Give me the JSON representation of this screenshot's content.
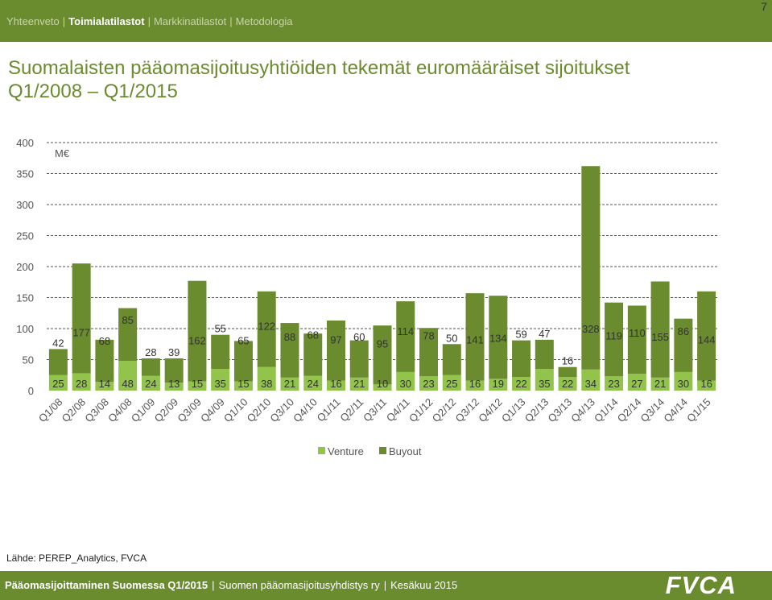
{
  "nav": {
    "items": [
      {
        "label": "Yhteenveto",
        "active": false
      },
      {
        "label": "Toimialatilastot",
        "active": true
      },
      {
        "label": "Markkinatilastot",
        "active": false
      },
      {
        "label": "Metodologia",
        "active": false
      }
    ]
  },
  "page_number": "7",
  "title_line1": "Suomalaisten pääomasijoitusyhtiöiden tekemät euromääräiset sijoitukset",
  "title_line2": "Q1/2008 – Q1/2015",
  "source": "Lähde: PEREP_Analytics, FVCA",
  "footer": {
    "part1": "Pääomasijoittaminen Suomessa Q1/2015",
    "part2": "Suomen pääomasijoitusyhdistys ry",
    "part3": "Kesäkuu 2015",
    "logo": "FVCA"
  },
  "colors": {
    "venture": "#92c34b",
    "buyout": "#6a8b2e",
    "brand": "#6a8b2e"
  },
  "chart_data": {
    "type": "bar",
    "stacked": true,
    "unit": "M€",
    "ylim": [
      0,
      400
    ],
    "yticks": [
      0,
      50,
      100,
      150,
      200,
      250,
      300,
      350,
      400
    ],
    "grid": true,
    "legend": "bottom",
    "categories": [
      "Q1/08",
      "Q2/08",
      "Q3/08",
      "Q4/08",
      "Q1/09",
      "Q2/09",
      "Q3/09",
      "Q4/09",
      "Q1/10",
      "Q2/10",
      "Q3/10",
      "Q4/10",
      "Q1/11",
      "Q2/11",
      "Q3/11",
      "Q4/11",
      "Q1/12",
      "Q2/12",
      "Q3/12",
      "Q4/12",
      "Q1/13",
      "Q2/13",
      "Q3/13",
      "Q4/13",
      "Q1/14",
      "Q2/14",
      "Q3/14",
      "Q4/14",
      "Q1/15"
    ],
    "series": [
      {
        "name": "Venture",
        "values": [
          25,
          28,
          14,
          48,
          24,
          13,
          15,
          35,
          15,
          38,
          21,
          24,
          16,
          21,
          10,
          30,
          23,
          25,
          16,
          19,
          22,
          35,
          22,
          34,
          23,
          27,
          21,
          30,
          16
        ]
      },
      {
        "name": "Buyout",
        "values": [
          42,
          177,
          68,
          85,
          28,
          39,
          162,
          55,
          65,
          122,
          88,
          68,
          97,
          60,
          95,
          114,
          78,
          50,
          141,
          134,
          59,
          47,
          16,
          328,
          119,
          110,
          155,
          86,
          144
        ]
      }
    ]
  }
}
